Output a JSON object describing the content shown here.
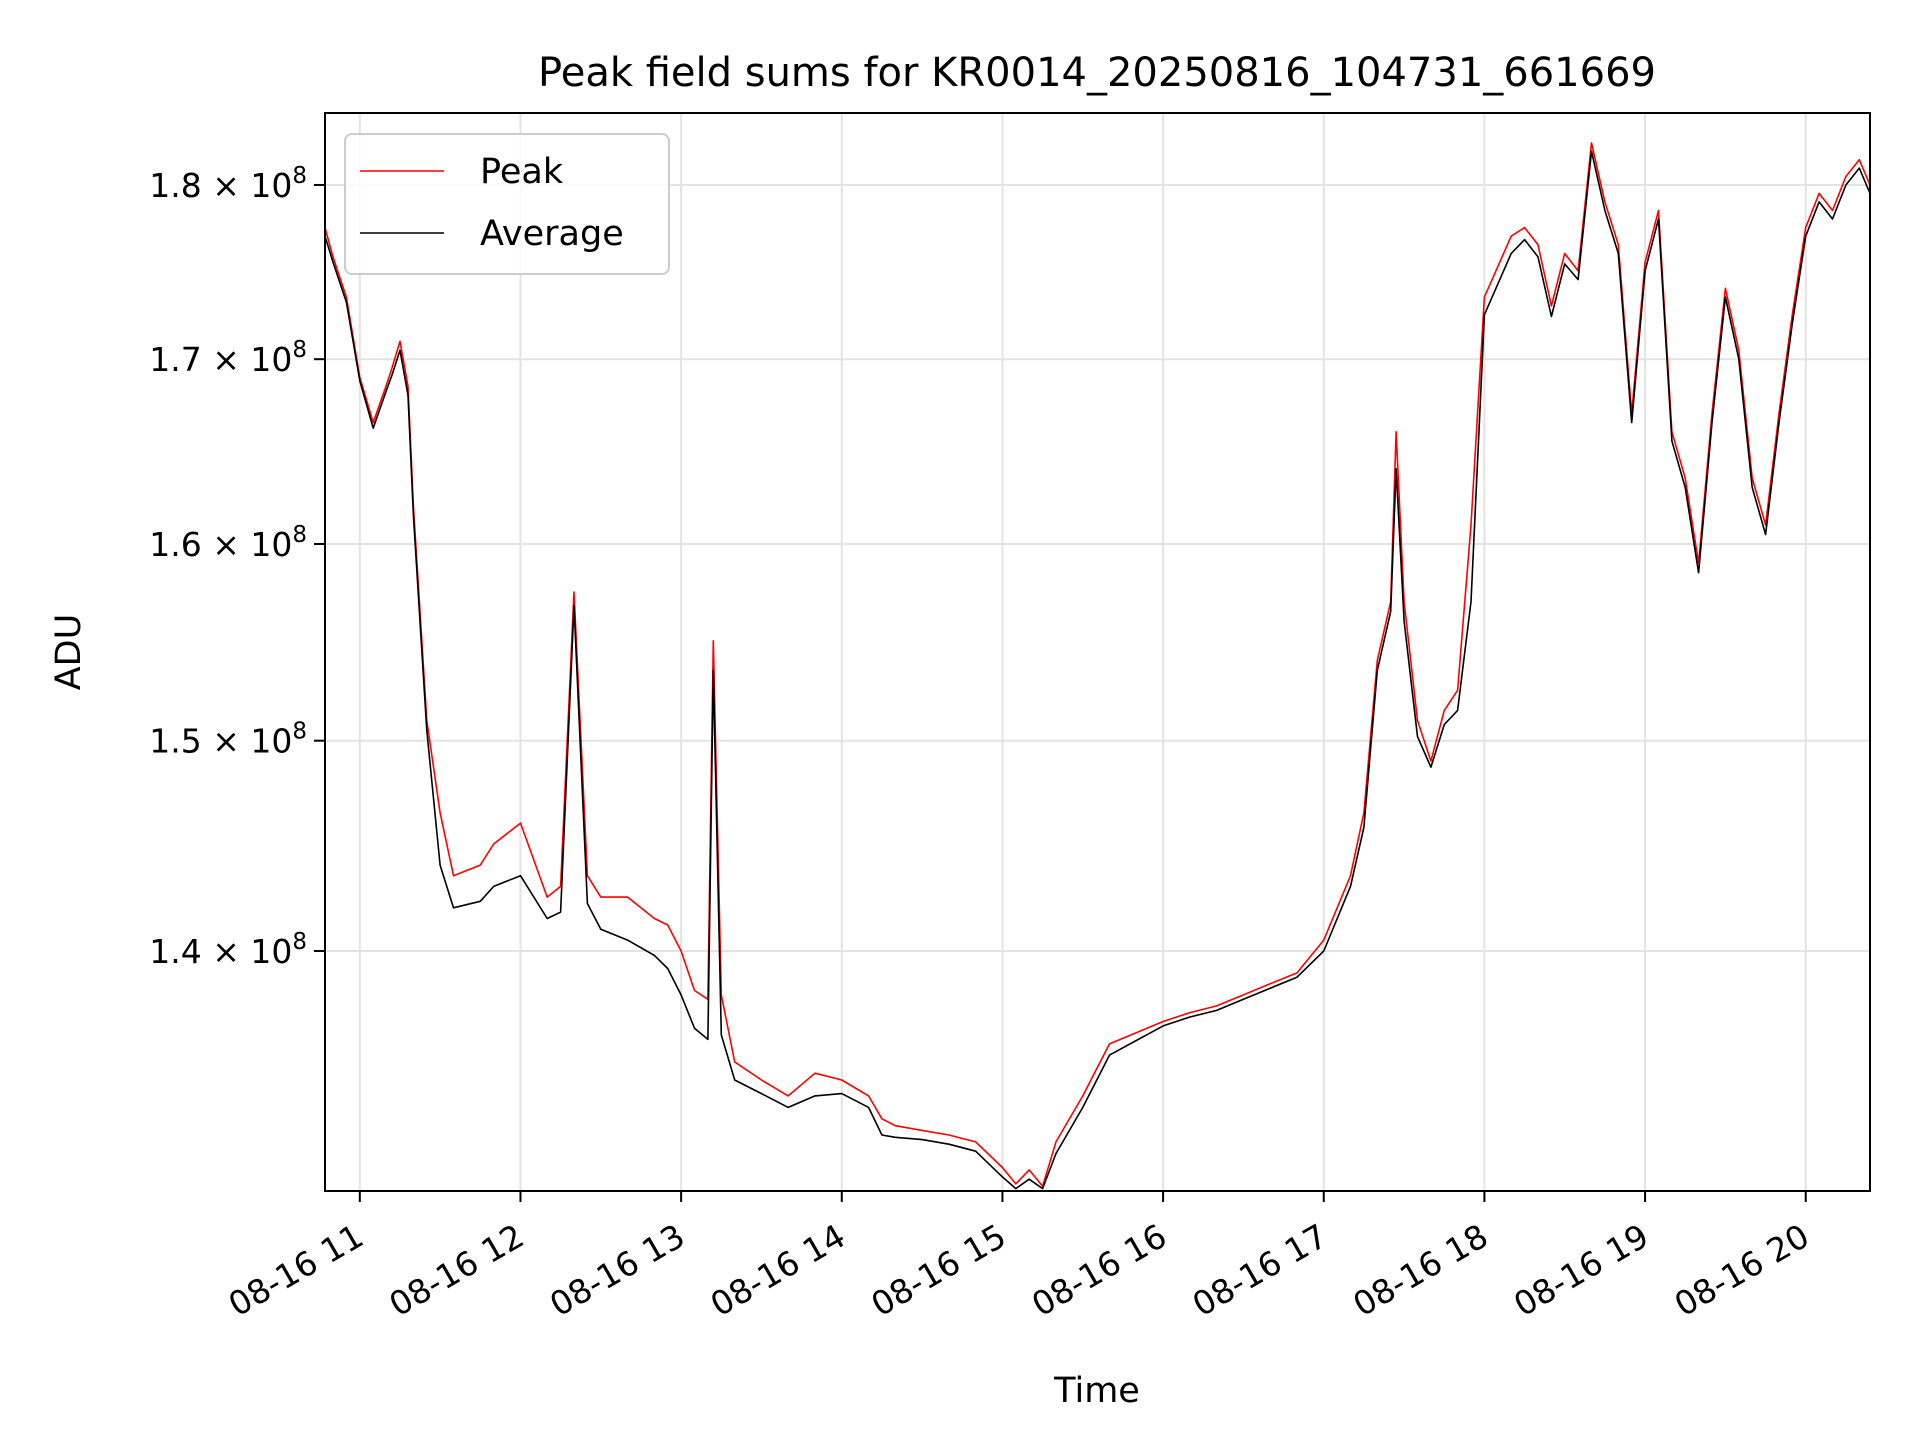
{
  "chart_data": {
    "type": "line",
    "title": "Peak field sums for KR0014_20250816_104731_661669",
    "xlabel": "Time",
    "ylabel": "ADU",
    "y_scale": "log",
    "x_range": [
      "2025-08-16 10:47",
      "2025-08-16 20:24"
    ],
    "ylim": [
      129400000,
      184300000
    ],
    "grid": true,
    "legend_position": "upper left",
    "x_ticks": [
      {
        "value": "2025-08-16 11:00",
        "label": "08-16 11"
      },
      {
        "value": "2025-08-16 12:00",
        "label": "08-16 12"
      },
      {
        "value": "2025-08-16 13:00",
        "label": "08-16 13"
      },
      {
        "value": "2025-08-16 14:00",
        "label": "08-16 14"
      },
      {
        "value": "2025-08-16 15:00",
        "label": "08-16 15"
      },
      {
        "value": "2025-08-16 16:00",
        "label": "08-16 16"
      },
      {
        "value": "2025-08-16 17:00",
        "label": "08-16 17"
      },
      {
        "value": "2025-08-16 18:00",
        "label": "08-16 18"
      },
      {
        "value": "2025-08-16 19:00",
        "label": "08-16 19"
      },
      {
        "value": "2025-08-16 20:00",
        "label": "08-16 20"
      }
    ],
    "y_ticks": [
      {
        "value": 140000000,
        "mantissa": "1.4",
        "base": "10",
        "exp": "8"
      },
      {
        "value": 150000000,
        "mantissa": "1.5",
        "base": "10",
        "exp": "8"
      },
      {
        "value": 160000000,
        "mantissa": "1.6",
        "base": "10",
        "exp": "8"
      },
      {
        "value": 170000000,
        "mantissa": "1.7",
        "base": "10",
        "exp": "8"
      },
      {
        "value": 180000000,
        "mantissa": "1.8",
        "base": "10",
        "exp": "8"
      }
    ],
    "series": [
      {
        "name": "Peak",
        "color": "#ff0000",
        "x": [
          "2025-08-16 10:47",
          "2025-08-16 10:50",
          "2025-08-16 10:55",
          "2025-08-16 11:00",
          "2025-08-16 11:05",
          "2025-08-16 11:10",
          "2025-08-16 11:12",
          "2025-08-16 11:15",
          "2025-08-16 11:18",
          "2025-08-16 11:20",
          "2025-08-16 11:25",
          "2025-08-16 11:30",
          "2025-08-16 11:35",
          "2025-08-16 11:45",
          "2025-08-16 11:50",
          "2025-08-16 12:00",
          "2025-08-16 12:10",
          "2025-08-16 12:15",
          "2025-08-16 12:20",
          "2025-08-16 12:25",
          "2025-08-16 12:30",
          "2025-08-16 12:40",
          "2025-08-16 12:50",
          "2025-08-16 12:55",
          "2025-08-16 13:00",
          "2025-08-16 13:05",
          "2025-08-16 13:10",
          "2025-08-16 13:12",
          "2025-08-16 13:15",
          "2025-08-16 13:20",
          "2025-08-16 13:30",
          "2025-08-16 13:40",
          "2025-08-16 13:50",
          "2025-08-16 14:00",
          "2025-08-16 14:10",
          "2025-08-16 14:15",
          "2025-08-16 14:20",
          "2025-08-16 14:30",
          "2025-08-16 14:40",
          "2025-08-16 14:50",
          "2025-08-16 15:00",
          "2025-08-16 15:05",
          "2025-08-16 15:10",
          "2025-08-16 15:15",
          "2025-08-16 15:20",
          "2025-08-16 15:30",
          "2025-08-16 15:40",
          "2025-08-16 16:00",
          "2025-08-16 16:10",
          "2025-08-16 16:20",
          "2025-08-16 16:30",
          "2025-08-16 16:40",
          "2025-08-16 16:50",
          "2025-08-16 17:00",
          "2025-08-16 17:10",
          "2025-08-16 17:15",
          "2025-08-16 17:20",
          "2025-08-16 17:25",
          "2025-08-16 17:27",
          "2025-08-16 17:30",
          "2025-08-16 17:35",
          "2025-08-16 17:40",
          "2025-08-16 17:45",
          "2025-08-16 17:50",
          "2025-08-16 17:55",
          "2025-08-16 18:00",
          "2025-08-16 18:10",
          "2025-08-16 18:15",
          "2025-08-16 18:20",
          "2025-08-16 18:25",
          "2025-08-16 18:30",
          "2025-08-16 18:35",
          "2025-08-16 18:40",
          "2025-08-16 18:45",
          "2025-08-16 18:50",
          "2025-08-16 18:55",
          "2025-08-16 19:00",
          "2025-08-16 19:05",
          "2025-08-16 19:10",
          "2025-08-16 19:15",
          "2025-08-16 19:20",
          "2025-08-16 19:25",
          "2025-08-16 19:30",
          "2025-08-16 19:35",
          "2025-08-16 19:40",
          "2025-08-16 19:45",
          "2025-08-16 19:50",
          "2025-08-16 19:55",
          "2025-08-16 20:00",
          "2025-08-16 20:05",
          "2025-08-16 20:10",
          "2025-08-16 20:15",
          "2025-08-16 20:20",
          "2025-08-16 20:24"
        ],
        "y": [
          177500000,
          175800000,
          173500000,
          169000000,
          166500000,
          168600000,
          169500000,
          171000000,
          168500000,
          162000000,
          151000000,
          146500000,
          143500000,
          144000000,
          145000000,
          146000000,
          142500000,
          143000000,
          157500000,
          143500000,
          142500000,
          142500000,
          141500000,
          141200000,
          140000000,
          138200000,
          137800000,
          155000000,
          138000000,
          135000000,
          134200000,
          133500000,
          134500000,
          134200000,
          133500000,
          132500000,
          132200000,
          132000000,
          131800000,
          131500000,
          130400000,
          129700000,
          130300000,
          129600000,
          131500000,
          133500000,
          135800000,
          136800000,
          137200000,
          137500000,
          138000000,
          138500000,
          139000000,
          140500000,
          143500000,
          146500000,
          154000000,
          157000000,
          166000000,
          157000000,
          151000000,
          149000000,
          151500000,
          152500000,
          161000000,
          173500000,
          177000000,
          177500000,
          176500000,
          173000000,
          176000000,
          175000000,
          182500000,
          179000000,
          176500000,
          167000000,
          175500000,
          178500000,
          166000000,
          163500000,
          159000000,
          167000000,
          174000000,
          170500000,
          163500000,
          161000000,
          167000000,
          172500000,
          177500000,
          179500000,
          178500000,
          180500000,
          181500000,
          180000000
        ]
      },
      {
        "name": "Average",
        "color": "#000000",
        "x": [
          "2025-08-16 10:47",
          "2025-08-16 10:50",
          "2025-08-16 10:55",
          "2025-08-16 11:00",
          "2025-08-16 11:05",
          "2025-08-16 11:10",
          "2025-08-16 11:12",
          "2025-08-16 11:15",
          "2025-08-16 11:18",
          "2025-08-16 11:20",
          "2025-08-16 11:25",
          "2025-08-16 11:30",
          "2025-08-16 11:35",
          "2025-08-16 11:45",
          "2025-08-16 11:50",
          "2025-08-16 12:00",
          "2025-08-16 12:10",
          "2025-08-16 12:15",
          "2025-08-16 12:20",
          "2025-08-16 12:25",
          "2025-08-16 12:30",
          "2025-08-16 12:40",
          "2025-08-16 12:50",
          "2025-08-16 12:55",
          "2025-08-16 13:00",
          "2025-08-16 13:05",
          "2025-08-16 13:10",
          "2025-08-16 13:12",
          "2025-08-16 13:15",
          "2025-08-16 13:20",
          "2025-08-16 13:30",
          "2025-08-16 13:40",
          "2025-08-16 13:50",
          "2025-08-16 14:00",
          "2025-08-16 14:10",
          "2025-08-16 14:15",
          "2025-08-16 14:20",
          "2025-08-16 14:30",
          "2025-08-16 14:40",
          "2025-08-16 14:50",
          "2025-08-16 15:00",
          "2025-08-16 15:05",
          "2025-08-16 15:10",
          "2025-08-16 15:15",
          "2025-08-16 15:20",
          "2025-08-16 15:30",
          "2025-08-16 15:40",
          "2025-08-16 16:00",
          "2025-08-16 16:10",
          "2025-08-16 16:20",
          "2025-08-16 16:30",
          "2025-08-16 16:40",
          "2025-08-16 16:50",
          "2025-08-16 17:00",
          "2025-08-16 17:10",
          "2025-08-16 17:15",
          "2025-08-16 17:20",
          "2025-08-16 17:25",
          "2025-08-16 17:27",
          "2025-08-16 17:30",
          "2025-08-16 17:35",
          "2025-08-16 17:40",
          "2025-08-16 17:45",
          "2025-08-16 17:50",
          "2025-08-16 17:55",
          "2025-08-16 18:00",
          "2025-08-16 18:10",
          "2025-08-16 18:15",
          "2025-08-16 18:20",
          "2025-08-16 18:25",
          "2025-08-16 18:30",
          "2025-08-16 18:35",
          "2025-08-16 18:40",
          "2025-08-16 18:45",
          "2025-08-16 18:50",
          "2025-08-16 18:55",
          "2025-08-16 19:00",
          "2025-08-16 19:05",
          "2025-08-16 19:10",
          "2025-08-16 19:15",
          "2025-08-16 19:20",
          "2025-08-16 19:25",
          "2025-08-16 19:30",
          "2025-08-16 19:35",
          "2025-08-16 19:40",
          "2025-08-16 19:45",
          "2025-08-16 19:50",
          "2025-08-16 19:55",
          "2025-08-16 20:00",
          "2025-08-16 20:05",
          "2025-08-16 20:10",
          "2025-08-16 20:15",
          "2025-08-16 20:20",
          "2025-08-16 20:24"
        ],
        "y": [
          177000000,
          175500000,
          173200000,
          168800000,
          166200000,
          168300000,
          169100000,
          170500000,
          168000000,
          161500000,
          150500000,
          144000000,
          142000000,
          142300000,
          143000000,
          143500000,
          141500000,
          141800000,
          156800000,
          142200000,
          141000000,
          140500000,
          139800000,
          139200000,
          138000000,
          136500000,
          136000000,
          153500000,
          136200000,
          134200000,
          133600000,
          133000000,
          133500000,
          133600000,
          133000000,
          131800000,
          131700000,
          131600000,
          131400000,
          131100000,
          130000000,
          129500000,
          129900000,
          129500000,
          131000000,
          133000000,
          135300000,
          136600000,
          137000000,
          137300000,
          137800000,
          138300000,
          138800000,
          140000000,
          143000000,
          145800000,
          153500000,
          156500000,
          164000000,
          156000000,
          150200000,
          148700000,
          150800000,
          151500000,
          157000000,
          172500000,
          176000000,
          176800000,
          175800000,
          172400000,
          175400000,
          174500000,
          182000000,
          178500000,
          176000000,
          166500000,
          175000000,
          178000000,
          165500000,
          163000000,
          158500000,
          166500000,
          173500000,
          170000000,
          163000000,
          160500000,
          166500000,
          172000000,
          177000000,
          179000000,
          178000000,
          180000000,
          181000000,
          179500000
        ]
      }
    ]
  }
}
